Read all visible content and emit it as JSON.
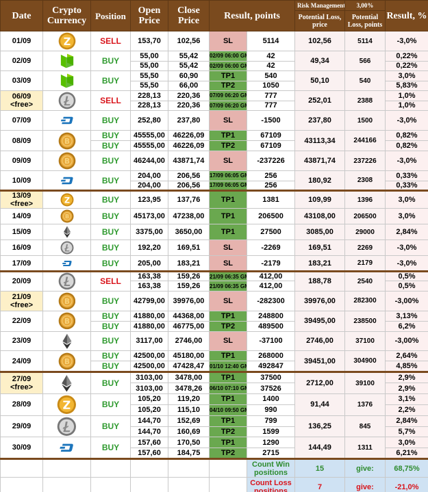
{
  "table": {
    "header": {
      "date": "Date",
      "coin": "Crypto Currency",
      "position": "Position",
      "open": "Open Price",
      "close": "Close Price",
      "result": "Result, points",
      "risk_label": "Risk Management:",
      "risk_value": "3,00%",
      "loss_price": "Potential Loss, price",
      "loss_points": "Potential Loss, points",
      "pct": "Result, %"
    },
    "groups": [
      {
        "date": "01/09",
        "position": "SELL",
        "loss_price": "102,56",
        "loss_points": "5114",
        "trades": [
          {
            "open": "153,70",
            "close": "102,56",
            "result": "SL",
            "points": "5114",
            "pct": "-3,0%"
          }
        ]
      },
      {
        "date": "02/09",
        "position": "BUY",
        "loss_price": "49,34",
        "loss_points": "566",
        "trades": [
          {
            "open": "55,00",
            "close": "55,42",
            "result": "02/09 06:00 GMT",
            "points": "42",
            "pct": "0,22%"
          },
          {
            "open": "55,00",
            "close": "55,42",
            "result": "02/09 06:00 GMT",
            "points": "42",
            "pct": "0,22%"
          }
        ]
      },
      {
        "date": "03/09",
        "position": "BUY",
        "loss_price": "50,10",
        "loss_points": "540",
        "trades": [
          {
            "open": "55,50",
            "close": "60,90",
            "result": "TP1",
            "points": "540",
            "pct": "3,0%"
          },
          {
            "open": "55,50",
            "close": "66,00",
            "result": "TP2",
            "points": "1050",
            "pct": "5,83%"
          }
        ]
      },
      {
        "date": "06/09",
        "free": "<free>",
        "position": "SELL",
        "loss_price": "252,01",
        "loss_points": "2388",
        "trades": [
          {
            "open": "228,13",
            "close": "220,36",
            "result": "07/09 06:20 GMT",
            "points": "777",
            "pct": "1,0%"
          },
          {
            "open": "228,13",
            "close": "220,36",
            "result": "07/09 06:20 GMT",
            "points": "777",
            "pct": "1,0%"
          }
        ]
      },
      {
        "date": "07/09",
        "position": "BUY",
        "loss_price": "237,80",
        "loss_points": "1500",
        "trades": [
          {
            "open": "252,80",
            "close": "237,80",
            "result": "SL",
            "points": "-1500",
            "pct": "-3,0%"
          }
        ]
      },
      {
        "date": "08/09",
        "position": [
          "BUY",
          "BUY"
        ],
        "loss_price": "43113,34",
        "loss_points": "244166",
        "trades": [
          {
            "open": "45555,00",
            "close": "46226,09",
            "result": "TP1",
            "points": "67109",
            "pct": "0,82%"
          },
          {
            "open": "45555,00",
            "close": "46226,09",
            "result": "TP2",
            "points": "67109",
            "pct": "0,82%"
          }
        ]
      },
      {
        "date": "09/09",
        "position": "BUY",
        "loss_price": "43871,74",
        "loss_points": "237226",
        "trades": [
          {
            "open": "46244,00",
            "close": "43871,74",
            "result": "SL",
            "points": "-237226",
            "pct": "-3,0%"
          }
        ]
      },
      {
        "date": "10/09",
        "position": "BUY",
        "loss_price": "180,92",
        "loss_points": "2308",
        "trades": [
          {
            "open": "204,00",
            "close": "206,56",
            "result": "17/09 06:05 GMT",
            "points": "256",
            "pct": "0,33%"
          },
          {
            "open": "204,00",
            "close": "206,56",
            "result": "17/09 06:05 GMT",
            "points": "256",
            "pct": "0,33%"
          }
        ]
      },
      {
        "date": "13/09",
        "free": "<free>",
        "position": "BUY",
        "loss_price": "109,99",
        "loss_points": "1396",
        "trades": [
          {
            "open": "123,95",
            "close": "137,76",
            "result": "TP1",
            "points": "1381",
            "pct": "3,0%"
          }
        ]
      },
      {
        "date": "14/09",
        "position": "BUY",
        "loss_price": "43108,00",
        "loss_points": "206500",
        "trades": [
          {
            "open": "45173,00",
            "close": "47238,00",
            "result": "TP1",
            "points": "206500",
            "pct": "3,0%"
          }
        ]
      },
      {
        "date": "15/09",
        "position": "BUY",
        "loss_price": "3085,00",
        "loss_points": "29000",
        "trades": [
          {
            "open": "3375,00",
            "close": "3650,00",
            "result": "TP1",
            "points": "27500",
            "pct": "2,84%"
          }
        ]
      },
      {
        "date": "16/09",
        "position": "BUY",
        "loss_price": "169,51",
        "loss_points": "2269",
        "trades": [
          {
            "open": "192,20",
            "close": "169,51",
            "result": "SL",
            "points": "-2269",
            "pct": "-3,0%"
          }
        ]
      },
      {
        "date": "17/09",
        "position": "BUY",
        "loss_price": "183,21",
        "loss_points": "2179",
        "trades": [
          {
            "open": "205,00",
            "close": "183,21",
            "result": "SL",
            "points": "-2179",
            "pct": "-3,0%"
          }
        ]
      },
      {
        "date": "20/09",
        "position": "SELL",
        "loss_price": "188,78",
        "loss_points": "2540",
        "trades": [
          {
            "open": "163,38",
            "close": "159,26",
            "result": "21/09 06:35 GMT",
            "points": "412,00",
            "pct": "0,5%"
          },
          {
            "open": "163,38",
            "close": "159,26",
            "result": "21/09 06:35 GMT",
            "points": "412,00",
            "pct": "0,5%"
          }
        ]
      },
      {
        "date": "21/09",
        "free": "<free>",
        "position": "BUY",
        "loss_price": "39976,00",
        "loss_points": "282300",
        "trades": [
          {
            "open": "42799,00",
            "close": "39976,00",
            "result": "SL",
            "points": "-282300",
            "pct": "-3,00%"
          }
        ]
      },
      {
        "date": "22/09",
        "position": [
          "BUY",
          "BUY"
        ],
        "loss_price": "39495,00",
        "loss_points": "238500",
        "trades": [
          {
            "open": "41880,00",
            "close": "44368,00",
            "result": "TP1",
            "points": "248800",
            "pct": "3,13%"
          },
          {
            "open": "41880,00",
            "close": "46775,00",
            "result": "TP2",
            "points": "489500",
            "pct": "6,2%"
          }
        ]
      },
      {
        "date": "23/09",
        "position": "BUY",
        "loss_price": "2746,00",
        "loss_points": "37100",
        "trades": [
          {
            "open": "3117,00",
            "close": "2746,00",
            "result": "SL",
            "points": "-37100",
            "pct": "-3,00%"
          }
        ]
      },
      {
        "date": "24/09",
        "position": [
          "BUY",
          "BUY"
        ],
        "loss_price": "39451,00",
        "loss_points": "304900",
        "trades": [
          {
            "open": "42500,00",
            "close": "45180,00",
            "result": "TP1",
            "points": "268000",
            "pct": "2,64%"
          },
          {
            "open": "42500,00",
            "close": "47428,47",
            "result": "01/10 12:40 GMT",
            "points": "492847",
            "pct": "4,85%"
          }
        ]
      },
      {
        "date": "27/09",
        "free": "<free>",
        "position": "BUY",
        "loss_price": "2712,00",
        "loss_points": "39100",
        "trades": [
          {
            "open": "3103,00",
            "close": "3478,00",
            "result": "TP1",
            "points": "37500",
            "pct": "2,9%"
          },
          {
            "open": "3103,00",
            "close": "3478,26",
            "result": "06/10 07:10 GMT",
            "points": "37526",
            "pct": "2,9%"
          }
        ]
      },
      {
        "date": "28/09",
        "position": "BUY",
        "loss_price": "91,44",
        "loss_points": "1376",
        "trades": [
          {
            "open": "105,20",
            "close": "119,20",
            "result": "TP1",
            "points": "1400",
            "pct": "3,1%"
          },
          {
            "open": "105,20",
            "close": "115,10",
            "result": "04/10 09:50 GMT",
            "points": "990",
            "pct": "2,2%"
          }
        ]
      },
      {
        "date": "29/09",
        "position": "BUY",
        "loss_price": "136,25",
        "loss_points": "845",
        "trades": [
          {
            "open": "144,70",
            "close": "152,69",
            "result": "TP1",
            "points": "799",
            "pct": "2,84%"
          },
          {
            "open": "144,70",
            "close": "160,69",
            "result": "TP2",
            "points": "1599",
            "pct": "5,7%"
          }
        ]
      },
      {
        "date": "30/09",
        "position": "BUY",
        "loss_price": "144,49",
        "loss_points": "1311",
        "trades": [
          {
            "open": "157,60",
            "close": "170,50",
            "result": "TP1",
            "points": "1290",
            "pct": "3,0%"
          },
          {
            "open": "157,60",
            "close": "184,75",
            "result": "TP2",
            "points": "2715",
            "pct": "6,21%"
          }
        ]
      }
    ],
    "summary": [
      {
        "label": "Count Win positions",
        "count": "15",
        "give": "give:",
        "pct": "68,75%"
      },
      {
        "label": "Count Loss positions",
        "count": "7",
        "give": "give:",
        "pct": "-21,0%"
      }
    ]
  }
}
